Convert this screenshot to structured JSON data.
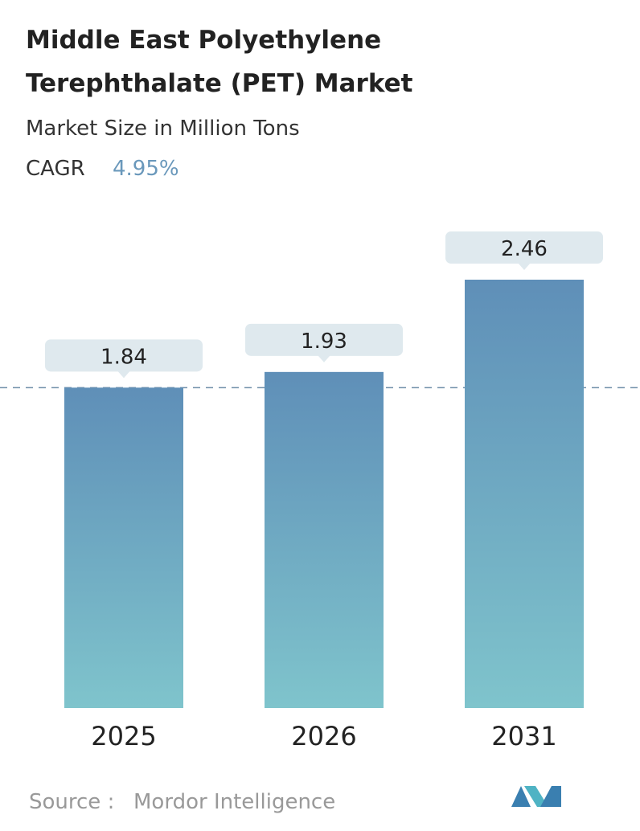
{
  "chart_data": {
    "type": "bar",
    "title_lines": [
      "Middle East Polyethylene",
      "Terephthalate (PET) Market"
    ],
    "subtitle": "Market Size in Million Tons",
    "cagr_label": "CAGR",
    "cagr": "4.95%",
    "categories": [
      "2025",
      "2026",
      "2031"
    ],
    "values": [
      1.84,
      1.93,
      2.46
    ],
    "color_top": "#5f8fb8",
    "color_bottom": "#7fc4cc",
    "source_label": "Source :",
    "source": "Mordor Intelligence"
  }
}
